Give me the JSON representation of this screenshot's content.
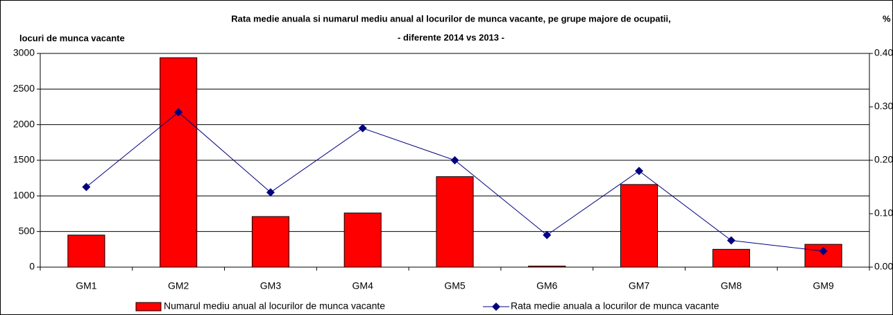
{
  "chart_data": {
    "type": "bar_line",
    "title": "Rata medie anuala si numarul mediu anual al locurilor de munca vacante, pe grupe majore de ocupatii,",
    "subtitle": "- diferente 2014 vs 2013 -",
    "y_label": "locuri de munca vacante",
    "y2_label": "%",
    "categories": [
      "GM1",
      "GM2",
      "GM3",
      "GM4",
      "GM5",
      "GM6",
      "GM7",
      "GM8",
      "GM9"
    ],
    "series": [
      {
        "name": "Numarul mediu anual al locurilor de munca vacante",
        "color": "#ff0000",
        "type": "bar",
        "values": [
          450,
          2940,
          710,
          760,
          1270,
          15,
          1160,
          250,
          320
        ]
      },
      {
        "name": "Rata medie anuala a locurilor de munca vacante",
        "color": "#000080",
        "type": "line",
        "axis": "y2",
        "values": [
          0.15,
          0.29,
          0.14,
          0.26,
          0.2,
          0.06,
          0.18,
          0.05,
          0.03
        ]
      }
    ],
    "ylim": [
      0,
      3000
    ],
    "yticks": [
      0,
      500,
      1000,
      1500,
      2000,
      2500,
      3000
    ],
    "y2lim": [
      0,
      0.4
    ],
    "y2ticks": [
      {
        "value": 0,
        "label": "0.00"
      },
      {
        "value": 0.1,
        "label": "0.10"
      },
      {
        "value": 0.2,
        "label": "0.20"
      },
      {
        "value": 0.3,
        "label": "0.30"
      },
      {
        "value": 0.4,
        "label": "0.40"
      }
    ],
    "grid": true,
    "legend": "bottom"
  }
}
